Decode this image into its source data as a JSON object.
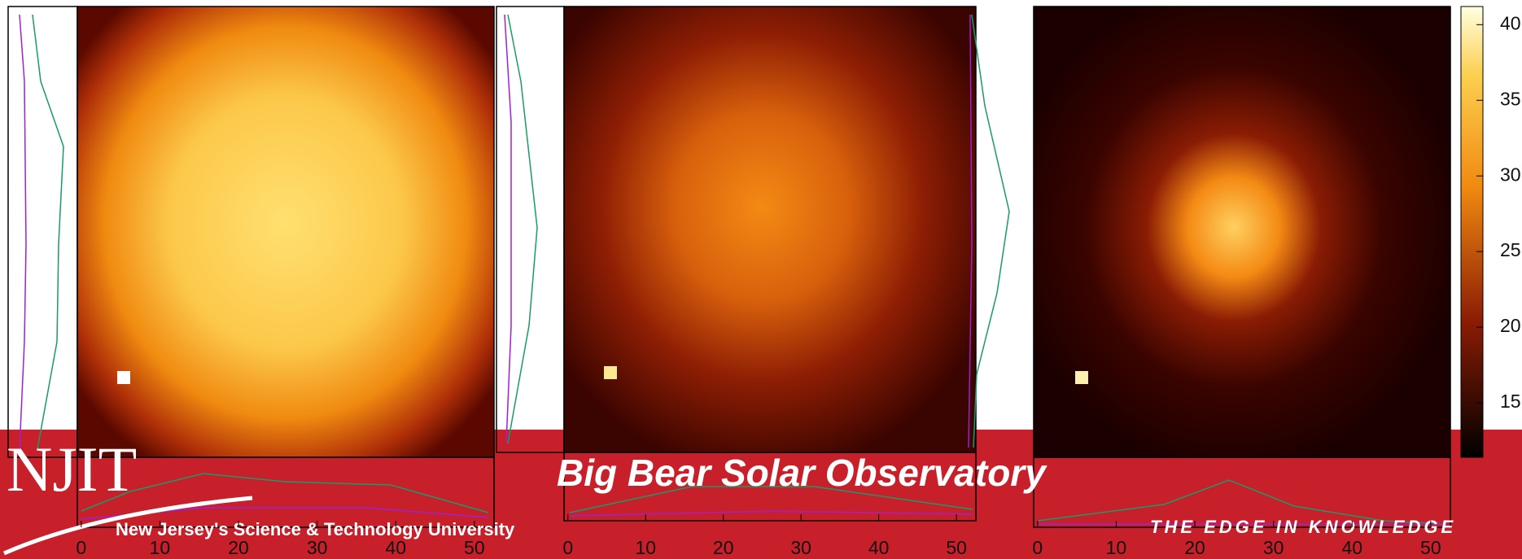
{
  "banner": {
    "title": "Big Bear Solar Observatory",
    "logo": "NJIT",
    "university": "New Jersey's Science & Technology University",
    "slogan": "THE EDGE IN KNOWLEDGE"
  },
  "panels": [
    {
      "xlim": [
        -0.5,
        52.5
      ],
      "xticks": [
        0,
        10,
        20,
        30,
        40,
        50
      ]
    },
    {
      "xlim": [
        -0.5,
        52.5
      ],
      "xticks": [
        0,
        10,
        20,
        30,
        40,
        50
      ]
    },
    {
      "xlim": [
        -0.5,
        52.5
      ],
      "xticks": [
        0,
        10,
        20,
        30,
        40,
        50
      ]
    }
  ],
  "colorbar": {
    "lim": [
      11.4,
      41.2
    ],
    "ticks": [
      40,
      35,
      30,
      25,
      20,
      15
    ]
  }
}
